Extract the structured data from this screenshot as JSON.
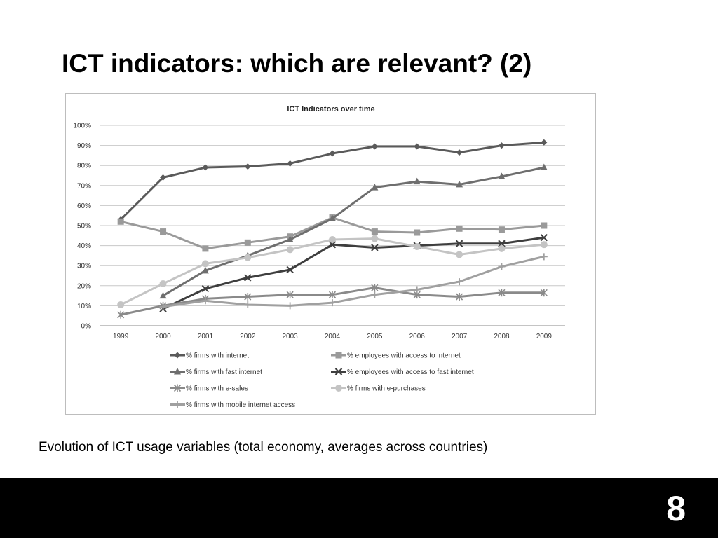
{
  "slide": {
    "title": "ICT indicators: which are relevant? (2)",
    "caption": "Evolution of ICT usage variables (total economy, averages across countries)",
    "page_number": "8"
  },
  "chart_data": {
    "type": "line",
    "title": "ICT Indicators over time",
    "xlabel": "",
    "ylabel": "",
    "x": [
      "1999",
      "2000",
      "2001",
      "2002",
      "2003",
      "2004",
      "2005",
      "2006",
      "2007",
      "2008",
      "2009"
    ],
    "y_ticks": [
      "0%",
      "10%",
      "20%",
      "30%",
      "40%",
      "50%",
      "60%",
      "70%",
      "80%",
      "90%",
      "100%"
    ],
    "ylim": [
      0,
      100
    ],
    "grid": true,
    "legend_position": "bottom",
    "series": [
      {
        "name": "% firms with internet",
        "marker": "diamond",
        "color": "#5a5a5a",
        "values": [
          53,
          74,
          79,
          79.5,
          81,
          86,
          89.5,
          89.5,
          86.5,
          90,
          91.5
        ]
      },
      {
        "name": "% employees with access to internet",
        "marker": "square",
        "color": "#9a9a9a",
        "values": [
          52,
          47,
          38.5,
          41.5,
          44.5,
          54,
          47,
          46.5,
          48.5,
          48,
          50
        ]
      },
      {
        "name": "% firms with fast internet",
        "marker": "triangle",
        "color": "#6e6e6e",
        "values": [
          null,
          15,
          27.5,
          35,
          43,
          53.5,
          69,
          72,
          70.5,
          74.5,
          79
        ]
      },
      {
        "name": "% employees with access to fast internet",
        "marker": "x",
        "color": "#3e3e3e",
        "values": [
          null,
          8.5,
          18.5,
          24,
          28,
          40.5,
          39,
          40,
          41,
          41,
          44
        ]
      },
      {
        "name": "% firms with e-sales",
        "marker": "star",
        "color": "#8a8a8a",
        "values": [
          5.5,
          10,
          13.5,
          14.5,
          15.5,
          15.5,
          19,
          15.5,
          14.5,
          16.5,
          16.5
        ]
      },
      {
        "name": "% firms with e-purchases",
        "marker": "circle",
        "color": "#c4c4c4",
        "values": [
          10.5,
          21,
          31,
          34,
          38,
          43,
          43.5,
          39.5,
          35.5,
          38.5,
          40.5
        ]
      },
      {
        "name": "% firms with mobile internet access",
        "marker": "plus",
        "color": "#a0a0a0",
        "values": [
          null,
          9.5,
          12.5,
          10.5,
          10,
          11.5,
          15.5,
          18,
          22,
          29.5,
          34.5
        ]
      }
    ]
  }
}
